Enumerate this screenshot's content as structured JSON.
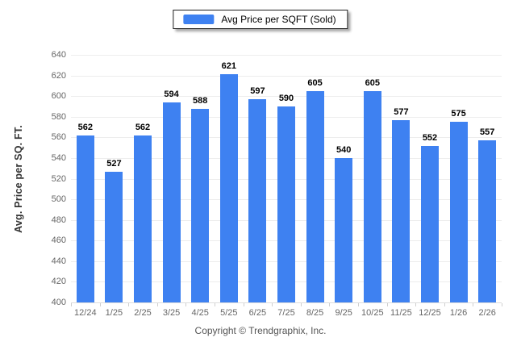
{
  "chart_data": {
    "type": "bar",
    "title": "Avg Price per SQFT (Sold)",
    "categories": [
      "12/24",
      "1/25",
      "2/25",
      "3/25",
      "4/25",
      "5/25",
      "6/25",
      "7/25",
      "8/25",
      "9/25",
      "10/25",
      "11/25",
      "12/25",
      "1/26",
      "2/26"
    ],
    "values": [
      562,
      527,
      562,
      594,
      588,
      621,
      597,
      590,
      605,
      540,
      605,
      577,
      552,
      575,
      557
    ],
    "xlabel": "",
    "ylabel": "Avg. Price per SQ. FT.",
    "ylim": [
      400,
      640
    ],
    "ytick_step": 20,
    "grid": "horizontal",
    "legend_position": "top",
    "data_labels": true
  },
  "colors": {
    "bar": "#3e81f1",
    "gridline": "#ededed",
    "baseline": "#dddddd",
    "tick_text": "#666666",
    "value_text": "#000000"
  },
  "footer": {
    "text": "Copyright © Trendgraphix, Inc."
  }
}
